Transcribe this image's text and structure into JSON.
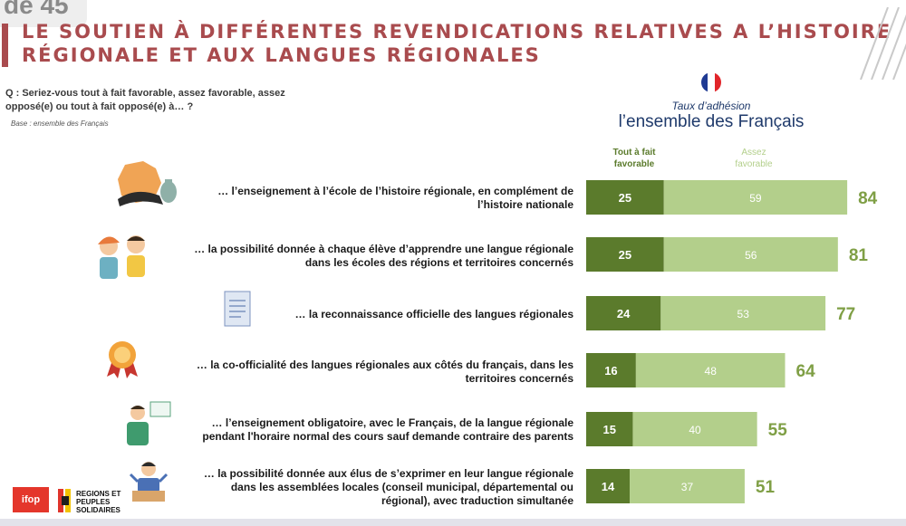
{
  "corner_tag": "de 45",
  "title_line1": "LE SOUTIEN À DIFFÉRENTES REVENDICATIONS RELATIVES A L’HISTOIRE",
  "title_line2": "RÉGIONALE ET AUX LANGUES RÉGIONALES",
  "question": "Q : Seriez-vous tout à fait favorable, assez favorable, assez opposé(e) ou tout à fait opposé(e) à… ?",
  "base": "Base : ensemble des Français",
  "taux_label": "Taux d’adhésion",
  "population": "l’ensemble des Français",
  "colors": {
    "title": "#a94b4e",
    "dark_green": "#5b7b2c",
    "light_green": "#b3cf8b",
    "total_green": "#7f9f45"
  },
  "chart_data": {
    "type": "bar",
    "orientation": "horizontal",
    "stacked": true,
    "categories": [
      "… l’enseignement à l’école de l’histoire régionale, en complément de l’histoire nationale",
      "… la possibilité donnée à chaque élève d’apprendre une langue régionale dans les écoles des régions et territoires concernés",
      "… la reconnaissance officielle des langues régionales",
      "… la co-officialité des langues régionales aux côtés du français, dans les territoires concernés",
      "… l’enseignement obligatoire, avec le Français, de la langue régionale pendant l'horaire normal des cours sauf demande contraire des parents",
      "… la possibilité donnée aux élus de s’exprimer en leur langue régionale dans les assemblées locales (conseil municipal, départemental ou régional), avec traduction simultanée"
    ],
    "label_lines": [
      [
        "… l’enseignement à l’école de l’histoire régionale, en complément de",
        "l’histoire nationale"
      ],
      [
        "… la possibilité donnée à chaque élève d’apprendre une langue régionale",
        "dans les écoles des régions et territoires concernés"
      ],
      [
        "… la reconnaissance officielle des langues régionales"
      ],
      [
        "… la co-officialité des langues régionales aux côtés du français, dans les",
        "territoires concernés"
      ],
      [
        "… l’enseignement obligatoire, avec le Français, de la langue régionale",
        "pendant l'horaire normal des cours sauf demande contraire des parents"
      ],
      [
        "… la possibilité donnée aux élus de s’exprimer en leur langue régionale",
        "dans les assemblées locales (conseil municipal, départemental ou",
        "régional), avec traduction simultanée"
      ]
    ],
    "series": [
      {
        "name": "Tout à fait favorable",
        "name_lines": [
          "Tout à fait",
          "favorable"
        ],
        "values": [
          25,
          25,
          24,
          16,
          15,
          14
        ]
      },
      {
        "name": "Assez favorable",
        "name_lines": [
          "Assez",
          "favorable"
        ],
        "values": [
          59,
          56,
          53,
          48,
          40,
          37
        ]
      }
    ],
    "totals": [
      84,
      81,
      77,
      64,
      55,
      51
    ],
    "xlim": [
      0,
      100
    ],
    "title": "Taux d’adhésion – l’ensemble des Français"
  },
  "footer": {
    "ifop": "ifop",
    "rps_line1": "REGIONS ET",
    "rps_line2": "PEUPLES",
    "rps_line3": "SOLIDAIRES"
  }
}
